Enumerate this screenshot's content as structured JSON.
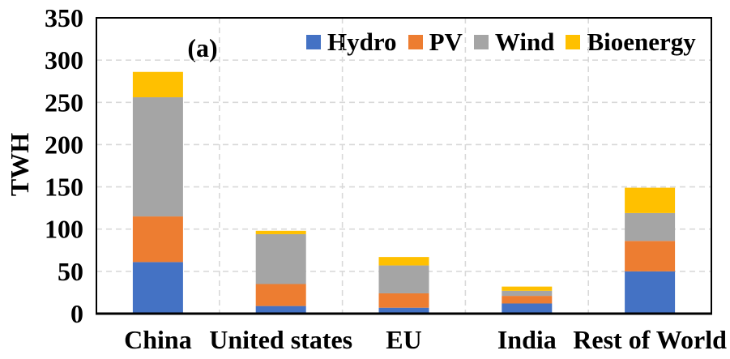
{
  "chart_data": {
    "type": "bar",
    "stacked": true,
    "title": "",
    "annotation": "(a)",
    "ylabel": "TWH",
    "ylim": [
      0,
      350
    ],
    "ytick_step": 50,
    "yticks": [
      0,
      50,
      100,
      150,
      200,
      250,
      300,
      350
    ],
    "categories": [
      "China",
      "United states",
      "EU",
      "India",
      "Rest of World"
    ],
    "series": [
      {
        "name": "Hydro",
        "color": "#4472C4",
        "values": [
          61,
          9,
          7,
          12,
          50
        ]
      },
      {
        "name": "PV",
        "color": "#ED7D31",
        "values": [
          54,
          26,
          17,
          9,
          36
        ]
      },
      {
        "name": "Wind",
        "color": "#A5A5A5",
        "values": [
          141,
          59,
          33,
          6,
          33
        ]
      },
      {
        "name": "Bioenergy",
        "color": "#FFC000",
        "values": [
          30,
          4,
          10,
          5,
          30
        ]
      }
    ],
    "totals": [
      286,
      98,
      67,
      32,
      149
    ],
    "legend_position": "top-inside",
    "grid": true,
    "grid_color": "#d9d9d9",
    "frame_color": "#000000",
    "background": "#ffffff"
  }
}
